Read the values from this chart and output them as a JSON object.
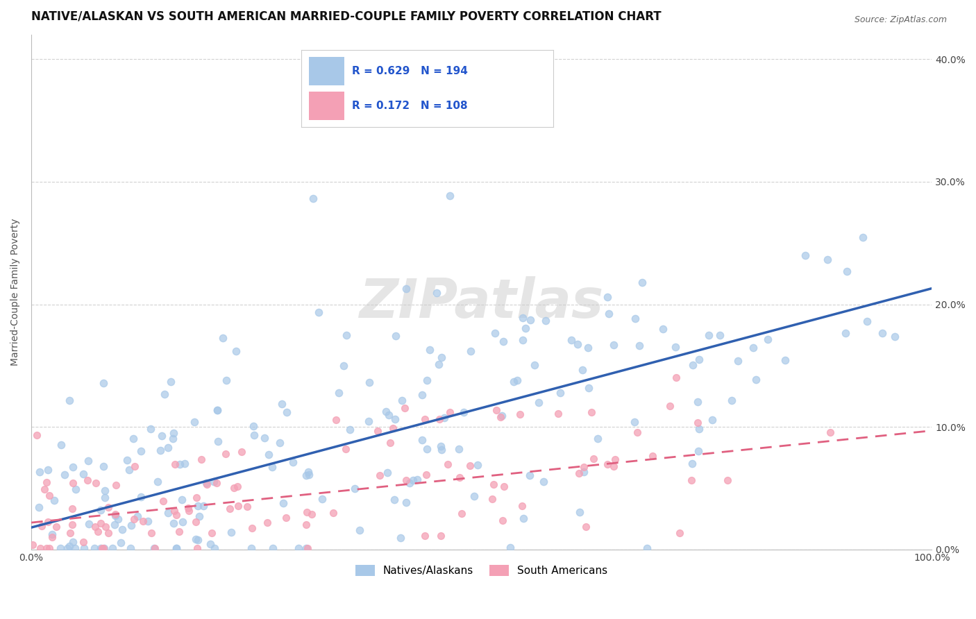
{
  "title": "NATIVE/ALASKAN VS SOUTH AMERICAN MARRIED-COUPLE FAMILY POVERTY CORRELATION CHART",
  "source": "Source: ZipAtlas.com",
  "ylabel": "Married-Couple Family Poverty",
  "xlim": [
    0,
    1
  ],
  "ylim": [
    0,
    0.42
  ],
  "blue_R": 0.629,
  "blue_N": 194,
  "pink_R": 0.172,
  "pink_N": 108,
  "watermark": "ZIPatlas",
  "blue_color": "#a8c8e8",
  "pink_color": "#f4a0b5",
  "blue_line_color": "#3060b0",
  "pink_line_color": "#e06080",
  "legend_label_blue": "Natives/Alaskans",
  "legend_label_pink": "South Americans",
  "grid_color": "#cccccc",
  "background_color": "#ffffff",
  "title_fontsize": 12,
  "axis_label_fontsize": 10,
  "tick_label_fontsize": 10,
  "blue_line_intercept": 0.018,
  "blue_line_slope": 0.195,
  "pink_line_intercept": 0.022,
  "pink_line_slope": 0.075
}
